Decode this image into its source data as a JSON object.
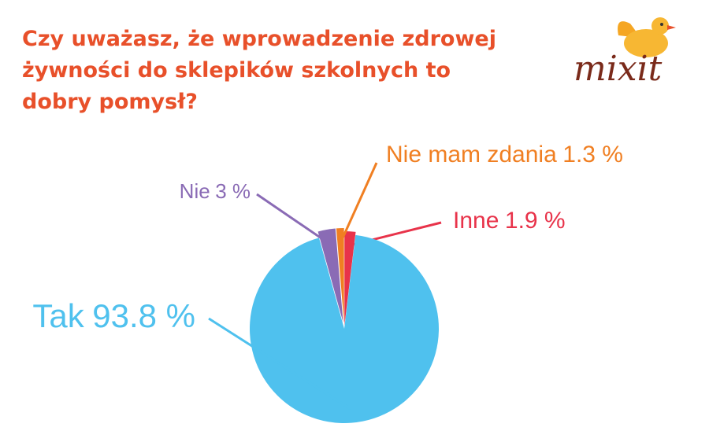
{
  "chart_data": {
    "type": "pie",
    "title": "Czy uważasz, że wprowadzenie zdrowej żywności do sklepików szkolnych to dobry pomysł?",
    "logo": "mixit",
    "categories": [
      "Inne",
      "Tak",
      "Nie",
      "Nie mam zdania"
    ],
    "values": [
      1.9,
      93.8,
      3,
      1.3
    ],
    "value_labels": [
      "1.9 %",
      "93.8 %",
      "3 %",
      "1.3 %"
    ],
    "colors": [
      "#e8334a",
      "#4fc1ee",
      "#8a6bb5",
      "#f07f22"
    ]
  }
}
